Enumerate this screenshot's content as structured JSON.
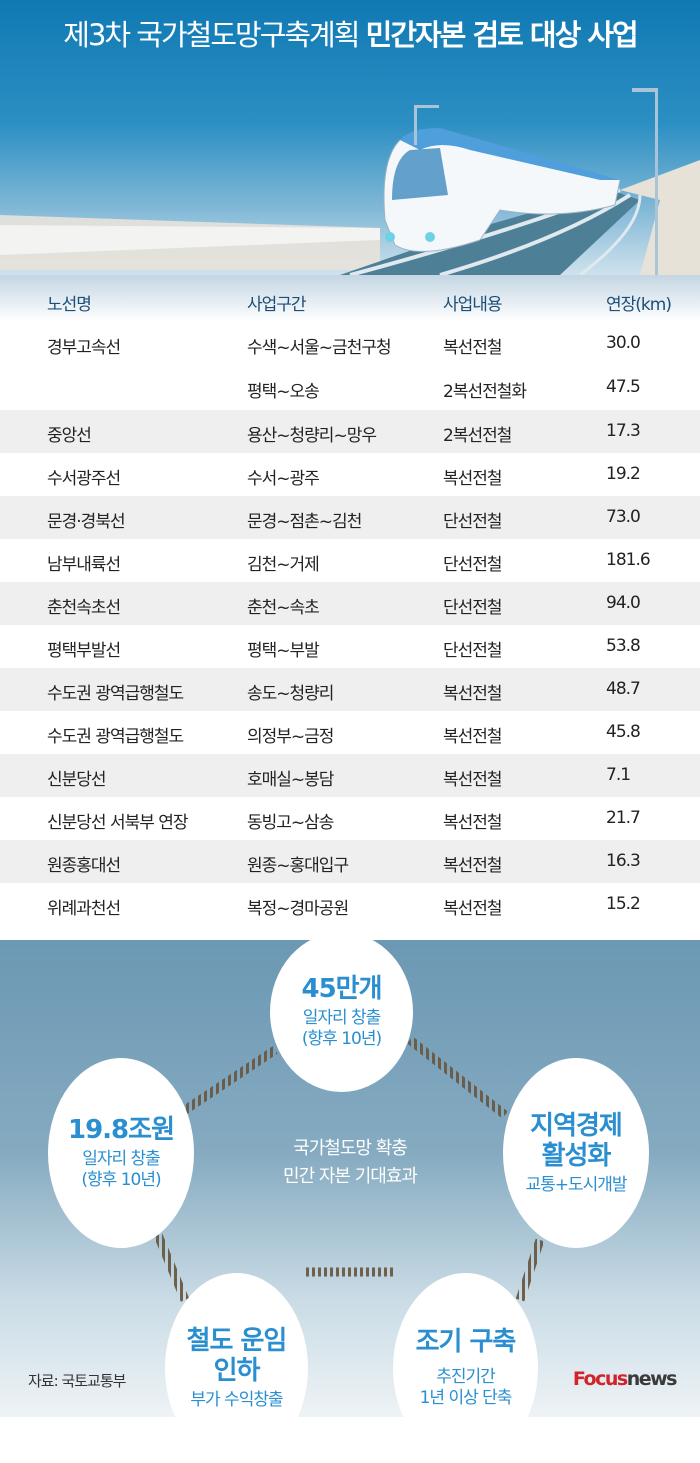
{
  "header": {
    "title_regular": "제3차 국가철도망구축계획",
    "title_bold": "민간자본 검토 대상 사업"
  },
  "table": {
    "columns": [
      "노선명",
      "사업구간",
      "사업내용",
      "연장(km)"
    ],
    "rows": [
      [
        "경부고속선",
        "수색~서울~금천구청",
        "복선전철",
        "30.0"
      ],
      [
        "",
        "평택~오송",
        "2복선전철화",
        "47.5"
      ],
      [
        "중앙선",
        "용산~청량리~망우",
        "2복선전철",
        "17.3"
      ],
      [
        "수서광주선",
        "수서~광주",
        "복선전철",
        "19.2"
      ],
      [
        "문경·경북선",
        "문경~점촌~김천",
        "단선전철",
        "73.0"
      ],
      [
        "남부내륙선",
        "김천~거제",
        "단선전철",
        "181.6"
      ],
      [
        "춘천속초선",
        "춘천~속초",
        "단선전철",
        "94.0"
      ],
      [
        "평택부발선",
        "평택~부발",
        "단선전철",
        "53.8"
      ],
      [
        "수도권 광역급행철도",
        "송도~청량리",
        "복선전철",
        "48.7"
      ],
      [
        "수도권 광역급행철도",
        "의정부~금정",
        "복선전철",
        "45.8"
      ],
      [
        "신분당선",
        "호매실~봉담",
        "복선전철",
        "7.1"
      ],
      [
        "신분당선 서북부 연장",
        "동빙고~삼송",
        "복선전철",
        "21.7"
      ],
      [
        "원종홍대선",
        "원종~홍대입구",
        "복선전철",
        "16.3"
      ],
      [
        "위례과천선",
        "복정~경마공원",
        "복선전철",
        "15.2"
      ]
    ]
  },
  "effects": {
    "center": [
      "국가철도망 확충",
      "민간 자본 기대효과"
    ],
    "circles": [
      {
        "big": [
          "45만개"
        ],
        "small": [
          "일자리 창출",
          "(향후 10년)"
        ]
      },
      {
        "big": [
          "19.8조원"
        ],
        "small": [
          "일자리 창출",
          "(향후 10년)"
        ]
      },
      {
        "big": [
          "지역경제",
          "활성화"
        ],
        "small": [
          "교통+도시개발"
        ]
      },
      {
        "big": [
          "철도 운임",
          "인하"
        ],
        "small": [
          "부가 수익창출"
        ]
      },
      {
        "big": [
          "조기 구축"
        ],
        "small": [
          "추진기간",
          "1년 이상 단축"
        ]
      }
    ]
  },
  "footer": {
    "source": "자료: 국토교통부",
    "logo_brand": "Focus",
    "logo_suffix": "news"
  },
  "colors": {
    "accent": "#2a8fd0",
    "header_text": "#1d4e78",
    "sky": "#1079b3"
  }
}
